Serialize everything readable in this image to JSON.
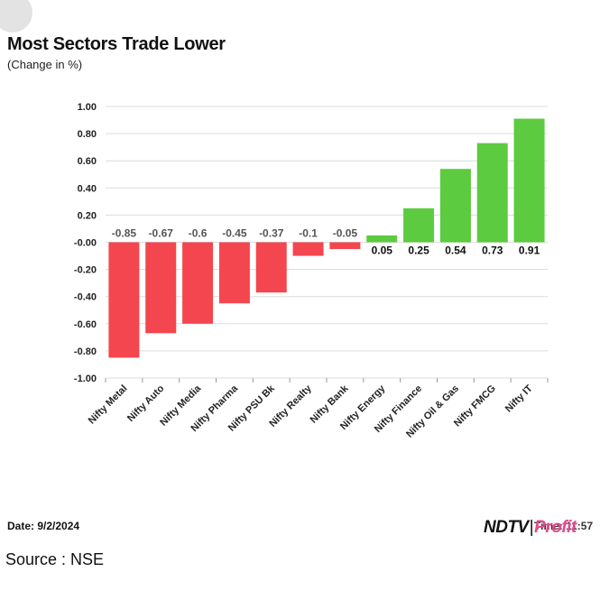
{
  "header": {
    "title": "Most Sectors Trade Lower",
    "subtitle": "(Change in %)"
  },
  "footer": {
    "date": "Date: 9/2/2024",
    "time": "Time: 11:57",
    "source": "Source : NSE",
    "brand_main": "NDTV",
    "brand_sep": "|",
    "brand_accent": "Profit"
  },
  "colors": {
    "negative": "#f4464f",
    "positive": "#5ccb3f",
    "brand_accent": "#e24a8d"
  },
  "chart_data": {
    "type": "bar",
    "title": "Most Sectors Trade Lower",
    "subtitle": "(Change in %)",
    "categories": [
      "Nifty Metal",
      "Nifty Auto",
      "Nifty Media",
      "Nifty Pharma",
      "Nifty PSU Bk",
      "Nifty Realty",
      "Nifty Bank",
      "Nifty Energy",
      "Nifty Finance",
      "Nifty Oil & Gas",
      "Nifty FMCG",
      "Nifty IT"
    ],
    "values": [
      -0.85,
      -0.67,
      -0.6,
      -0.45,
      -0.37,
      -0.1,
      -0.05,
      0.05,
      0.25,
      0.54,
      0.73,
      0.91
    ],
    "value_labels": [
      "-0.85",
      "-0.67",
      "-0.6",
      "-0.45",
      "-0.37",
      "-0.1",
      "-0.05",
      "0.05",
      "0.25",
      "0.54",
      "0.73",
      "0.91"
    ],
    "ylim": [
      -1.0,
      1.0
    ],
    "yticks": [
      1.0,
      0.8,
      0.6,
      0.4,
      0.2,
      0.0,
      -0.2,
      -0.4,
      -0.6,
      -0.8,
      -1.0
    ],
    "ytick_labels": [
      "1.00",
      "0.80",
      "0.60",
      "0.40",
      "0.20",
      "-0.00",
      "-0.20",
      "-0.40",
      "-0.60",
      "-0.80",
      "-1.00"
    ],
    "grid": true,
    "legend": false
  }
}
